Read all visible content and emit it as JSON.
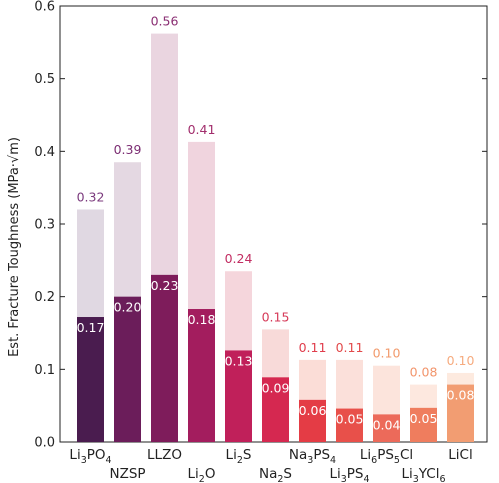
{
  "chart_data": {
    "type": "bar",
    "ylabel": "Est. Fracture Toughness (MPa·√m)",
    "xlabel": "",
    "ylim": [
      0,
      0.6
    ],
    "yticks": [
      "0.0",
      "0.1",
      "0.2",
      "0.3",
      "0.4",
      "0.5",
      "0.6"
    ],
    "ytick_values": [
      0,
      0.1,
      0.2,
      0.3,
      0.4,
      0.5,
      0.6
    ],
    "grid": false,
    "categories": [
      {
        "base": "Li",
        "sub1": "3",
        "mid": "PO",
        "sub2": "4",
        "tail": "",
        "row": 0
      },
      {
        "base": "NZSP",
        "sub1": "",
        "mid": "",
        "sub2": "",
        "tail": "",
        "row": 1
      },
      {
        "base": "LLZO",
        "sub1": "",
        "mid": "",
        "sub2": "",
        "tail": "",
        "row": 0
      },
      {
        "base": "Li",
        "sub1": "2",
        "mid": "O",
        "sub2": "",
        "tail": "",
        "row": 1
      },
      {
        "base": "Li",
        "sub1": "2",
        "mid": "S",
        "sub2": "",
        "tail": "",
        "row": 0
      },
      {
        "base": "Na",
        "sub1": "2",
        "mid": "S",
        "sub2": "",
        "tail": "",
        "row": 1
      },
      {
        "base": "Na",
        "sub1": "3",
        "mid": "PS",
        "sub2": "4",
        "tail": "",
        "row": 0
      },
      {
        "base": "Li",
        "sub1": "3",
        "mid": "PS",
        "sub2": "4",
        "tail": "",
        "row": 1
      },
      {
        "base": "Li",
        "sub1": "6",
        "mid": "PS",
        "sub2": "5",
        "tail": "Cl",
        "row": 0
      },
      {
        "base": "Li",
        "sub1": "3",
        "mid": "YCl",
        "sub2": "6",
        "tail": "",
        "row": 1
      },
      {
        "base": "LiCl",
        "sub1": "",
        "mid": "",
        "sub2": "",
        "tail": "",
        "row": 0
      }
    ],
    "series": [
      {
        "values": [
          0.32,
          0.385,
          0.562,
          0.413,
          0.235,
          0.155,
          0.113,
          0.113,
          0.105,
          0.079,
          0.095
        ]
      },
      {
        "values": [
          0.172,
          0.2,
          0.23,
          0.183,
          0.126,
          0.089,
          0.058,
          0.046,
          0.038,
          0.047,
          0.079
        ]
      }
    ],
    "top_labels": [
      "0.32",
      "0.39",
      "0.56",
      "0.41",
      "0.24",
      "0.15",
      "0.11",
      "0.11",
      "0.10",
      "0.08",
      "0.10"
    ],
    "inner_labels": [
      "0.17",
      "0.20",
      "0.23",
      "0.18",
      "0.13",
      "0.09",
      "0.06",
      "0.05",
      "0.04",
      "0.05",
      "0.08"
    ],
    "colors": {
      "dark": [
        "#4a1c4f",
        "#6b1d5a",
        "#7e1c5b",
        "#a31d5e",
        "#c0205a",
        "#d52850",
        "#e43c45",
        "#e8504a",
        "#ec6a5a",
        "#ef7d5e",
        "#f29d72"
      ],
      "light": [
        "#e0d8e2",
        "#e4d8e2",
        "#ead5e0",
        "#f0d4de",
        "#f5d6dc",
        "#f8dad9",
        "#fbddd7",
        "#fbe0da",
        "#fce4dc",
        "#fde8df",
        "#fdeadf"
      ],
      "label": [
        "#7b3a7d",
        "#7b2d72",
        "#8a2e73",
        "#a12d6c",
        "#c22d62",
        "#d63a58",
        "#e03d4c",
        "#e2494a",
        "#f29a6c",
        "#f2956c",
        "#f6ab7f"
      ]
    }
  }
}
